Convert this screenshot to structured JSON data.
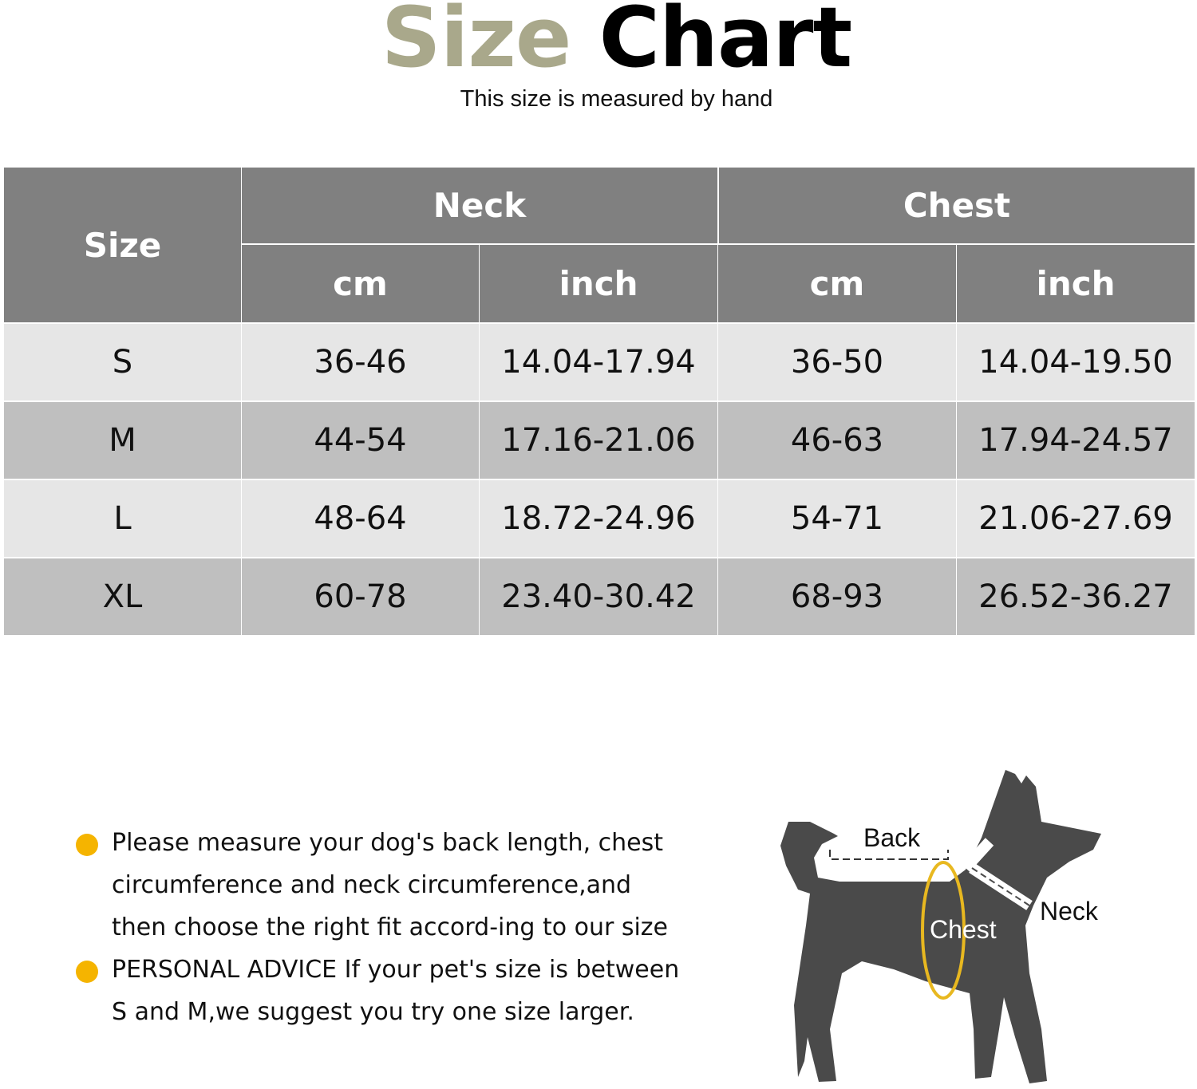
{
  "header": {
    "title_part1": "Size",
    "title_part2": "Chart",
    "subtitle": "This size is measured by hand"
  },
  "colors": {
    "title_accent": "#a9a88b",
    "header_bg": "#808080",
    "row_light": "#e6e6e6",
    "row_dark": "#bfbfbf",
    "bullet": "#f5b400",
    "dog": "#4a4a4a",
    "chest_ring": "#e8b820"
  },
  "table": {
    "size_header": "Size",
    "groups": [
      "Neck",
      "Chest"
    ],
    "units": [
      "cm",
      "inch",
      "cm",
      "inch"
    ],
    "rows": [
      [
        "S",
        "36-46",
        "14.04-17.94",
        "36-50",
        "14.04-19.50"
      ],
      [
        "M",
        "44-54",
        "17.16-21.06",
        "46-63",
        "17.94-24.57"
      ],
      [
        "L",
        "48-64",
        "18.72-24.96",
        "54-71",
        "21.06-27.69"
      ],
      [
        "XL",
        "60-78",
        "23.40-30.42",
        "68-93",
        "26.52-36.27"
      ]
    ]
  },
  "notes": [
    {
      "icon": "bullet-dot",
      "lines": [
        "Please measure your dog's back length, chest",
        "circumference and neck circumference,and",
        "then choose the right fit accord-ing to our size"
      ]
    },
    {
      "icon": "bullet-dot",
      "lines": [
        "PERSONAL ADVICE If your pet's size is between",
        "S and M,we suggest you try one size larger."
      ]
    }
  ],
  "diagram": {
    "back_label": "Back",
    "chest_label": "Chest",
    "neck_label": "Neck"
  }
}
